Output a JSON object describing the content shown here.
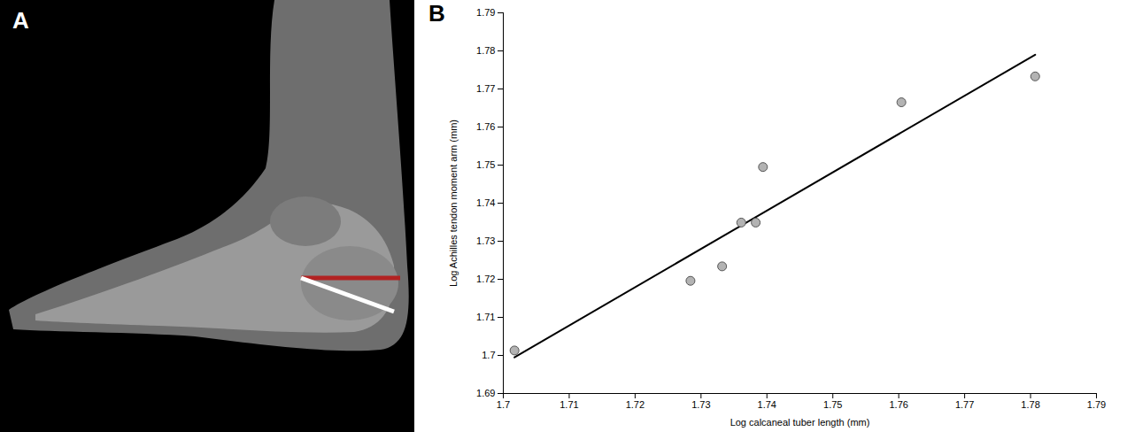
{
  "image": {
    "label": "A"
  },
  "chart_data": {
    "type": "scatter",
    "panel_label": "B",
    "x_label": "Log calcaneal tuber length (mm)",
    "y_label": "Log Achilles tendon moment arm (mm)",
    "x": [
      1.7017,
      1.7284,
      1.7332,
      1.7361,
      1.7383,
      1.7394,
      1.7604,
      1.7807
    ],
    "values": [
      1.7013,
      1.7196,
      1.7234,
      1.7349,
      1.7349,
      1.7495,
      1.7665,
      1.7733
    ],
    "color": "#b3b3b3",
    "marker": "circle",
    "fit": {
      "type": "line",
      "color": "#000000",
      "x": [
        1.7017,
        1.7807
      ],
      "values": [
        1.6995,
        1.779
      ]
    },
    "xlim": [
      1.7,
      1.79
    ],
    "xticks": [
      1.7,
      1.71,
      1.72,
      1.73,
      1.74,
      1.75,
      1.76,
      1.77,
      1.78,
      1.79
    ],
    "ylim": [
      1.69,
      1.79
    ],
    "yticks": [
      1.69,
      1.7,
      1.71,
      1.72,
      1.73,
      1.74,
      1.75,
      1.76,
      1.77,
      1.78,
      1.79
    ],
    "grid": false
  }
}
